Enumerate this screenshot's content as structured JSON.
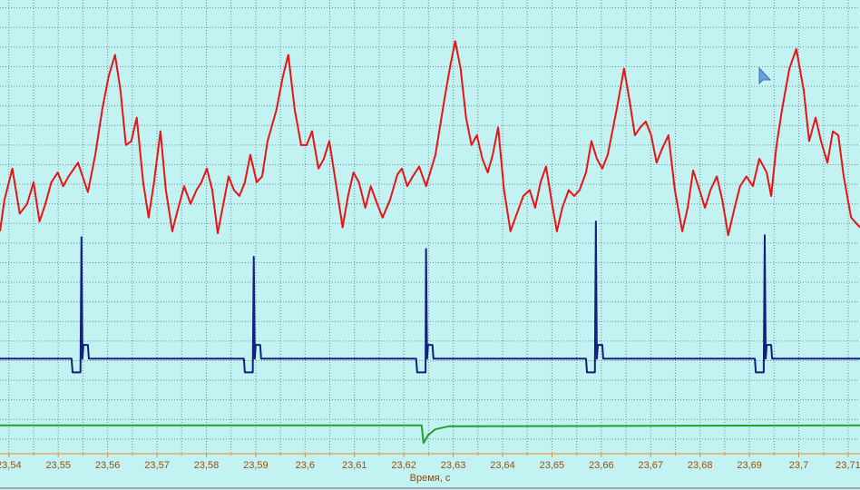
{
  "chart_data": {
    "type": "line",
    "xlabel": "Время, с",
    "xlim": [
      23.5382,
      23.7124
    ],
    "xticks": [
      {
        "value": 23.54,
        "label": "23,54"
      },
      {
        "value": 23.55,
        "label": "23,55"
      },
      {
        "value": 23.56,
        "label": "23,56"
      },
      {
        "value": 23.57,
        "label": "23,57"
      },
      {
        "value": 23.58,
        "label": "23,58"
      },
      {
        "value": 23.59,
        "label": "23,59"
      },
      {
        "value": 23.6,
        "label": "23,6"
      },
      {
        "value": 23.61,
        "label": "23,61"
      },
      {
        "value": 23.62,
        "label": "23,62"
      },
      {
        "value": 23.63,
        "label": "23,63"
      },
      {
        "value": 23.64,
        "label": "23,64"
      },
      {
        "value": 23.65,
        "label": "23,65"
      },
      {
        "value": 23.66,
        "label": "23,66"
      },
      {
        "value": 23.67,
        "label": "23,67"
      },
      {
        "value": 23.68,
        "label": "23,68"
      },
      {
        "value": 23.69,
        "label": "23,69"
      },
      {
        "value": 23.7,
        "label": "23,7"
      },
      {
        "value": 23.71,
        "label": "23,71"
      }
    ],
    "xminor_ticks": [
      23.545,
      23.555,
      23.565,
      23.575,
      23.585,
      23.595,
      23.605,
      23.615,
      23.625,
      23.635,
      23.645,
      23.655,
      23.665,
      23.675,
      23.685,
      23.695,
      23.705
    ],
    "ylim": [
      0,
      250
    ],
    "yticks": [
      26,
      36,
      46,
      56,
      66,
      76,
      86,
      96,
      106,
      116,
      126,
      136,
      146,
      156,
      166,
      176,
      186,
      196,
      206,
      216,
      226,
      236,
      246
    ],
    "grid": true,
    "series": [
      {
        "color": "#e81414",
        "x": [
          23.5382,
          23.5391,
          23.5407,
          23.5422,
          23.5437,
          23.545,
          23.5462,
          23.5474,
          23.5486,
          23.5499,
          23.551,
          23.5521,
          23.554,
          23.556,
          23.5575,
          23.5589,
          23.5602,
          23.5615,
          23.5626,
          23.5637,
          23.5648,
          23.5659,
          23.5672,
          23.5683,
          23.5694,
          23.5707,
          23.5718,
          23.5731,
          23.574,
          23.5755,
          23.5768,
          23.578,
          23.579,
          23.5801,
          23.5812,
          23.5823,
          23.5836,
          23.5845,
          23.5856,
          23.5867,
          23.5878,
          23.5889,
          23.5902,
          23.5913,
          23.5924,
          23.5942,
          23.5955,
          23.5966,
          23.5979,
          23.5992,
          23.6003,
          23.6014,
          23.6027,
          23.6038,
          23.6049,
          23.6062,
          23.6076,
          23.6087,
          23.6098,
          23.6109,
          23.6122,
          23.6133,
          23.6146,
          23.6157,
          23.6172,
          23.6187,
          23.6196,
          23.6207,
          23.6218,
          23.6231,
          23.6245,
          23.6264,
          23.6282,
          23.6293,
          23.6304,
          23.6315,
          23.6326,
          23.6337,
          23.6348,
          23.6359,
          23.637,
          23.638,
          23.6391,
          23.6403,
          23.6416,
          23.6429,
          23.6442,
          23.6455,
          23.6466,
          23.6477,
          23.6488,
          23.6499,
          23.651,
          23.6521,
          23.6534,
          23.6545,
          23.6556,
          23.6569,
          23.658,
          23.6591,
          23.6602,
          23.6613,
          23.6631,
          23.6646,
          23.6657,
          23.6668,
          23.6679,
          23.669,
          23.6701,
          23.6712,
          23.6723,
          23.6736,
          23.6749,
          23.6764,
          23.6775,
          23.6786,
          23.6799,
          23.681,
          23.6821,
          23.6834,
          23.6845,
          23.6857,
          23.687,
          23.6881,
          23.6894,
          23.6907,
          23.692,
          23.6935,
          23.6944,
          23.6955,
          23.6966,
          23.6981,
          23.6995,
          23.701,
          23.7021,
          23.7034,
          23.7045,
          23.7058,
          23.7069,
          23.708,
          23.7091,
          23.7106,
          23.7124
        ],
        "values": [
          132,
          148,
          164,
          141,
          146,
          157,
          137,
          146,
          157,
          162,
          155,
          160,
          167,
          152,
          171,
          194,
          211,
          222,
          204,
          176,
          178,
          190,
          157,
          139,
          157,
          183,
          153,
          132,
          141,
          155,
          146,
          153,
          157,
          164,
          153,
          131,
          148,
          160,
          153,
          150,
          157,
          171,
          157,
          160,
          178,
          194,
          211,
          222,
          194,
          176,
          176,
          183,
          164,
          169,
          178,
          157,
          134,
          150,
          162,
          157,
          144,
          155,
          146,
          139,
          148,
          161,
          164,
          155,
          160,
          165,
          155,
          171,
          199,
          215,
          229,
          215,
          190,
          176,
          181,
          169,
          162,
          171,
          185,
          153,
          132,
          141,
          150,
          153,
          144,
          157,
          165,
          148,
          132,
          144,
          153,
          150,
          153,
          162,
          178,
          169,
          164,
          171,
          194,
          215,
          199,
          181,
          185,
          188,
          181,
          167,
          174,
          181,
          153,
          132,
          144,
          163,
          153,
          144,
          153,
          160,
          148,
          130,
          144,
          155,
          160,
          155,
          169,
          162,
          150,
          176,
          194,
          215,
          225,
          204,
          178,
          190,
          178,
          167,
          183,
          181,
          160,
          139,
          134
        ]
      },
      {
        "color": "#13207e",
        "x": [
          23.5382,
          23.5527,
          23.5529,
          23.5545,
          23.5547,
          23.5549,
          23.5551,
          23.556,
          23.5562,
          23.5876,
          23.5878,
          23.5894,
          23.5896,
          23.5898,
          23.59,
          23.5909,
          23.5911,
          23.6225,
          23.6227,
          23.6244,
          23.6245,
          23.6247,
          23.6249,
          23.6258,
          23.626,
          23.6569,
          23.6571,
          23.6587,
          23.6589,
          23.6591,
          23.6593,
          23.6602,
          23.6604,
          23.6911,
          23.6913,
          23.6929,
          23.6931,
          23.6933,
          23.6935,
          23.6944,
          23.6946,
          23.7124
        ],
        "values": [
          67,
          67,
          60,
          60,
          129,
          67,
          74,
          74,
          67,
          67,
          60,
          60,
          119,
          67,
          74,
          74,
          67,
          67,
          60,
          60,
          123,
          67,
          74,
          74,
          67,
          67,
          60,
          60,
          137,
          67,
          74,
          74,
          67,
          67,
          60,
          60,
          130,
          67,
          74,
          74,
          67,
          67
        ]
      },
      {
        "color": "#22a02a",
        "x": [
          23.5382,
          23.6236,
          23.624,
          23.6249,
          23.6264,
          23.6291,
          23.7124
        ],
        "values": [
          33,
          33,
          24,
          28,
          31,
          32.5,
          33
        ]
      }
    ]
  }
}
